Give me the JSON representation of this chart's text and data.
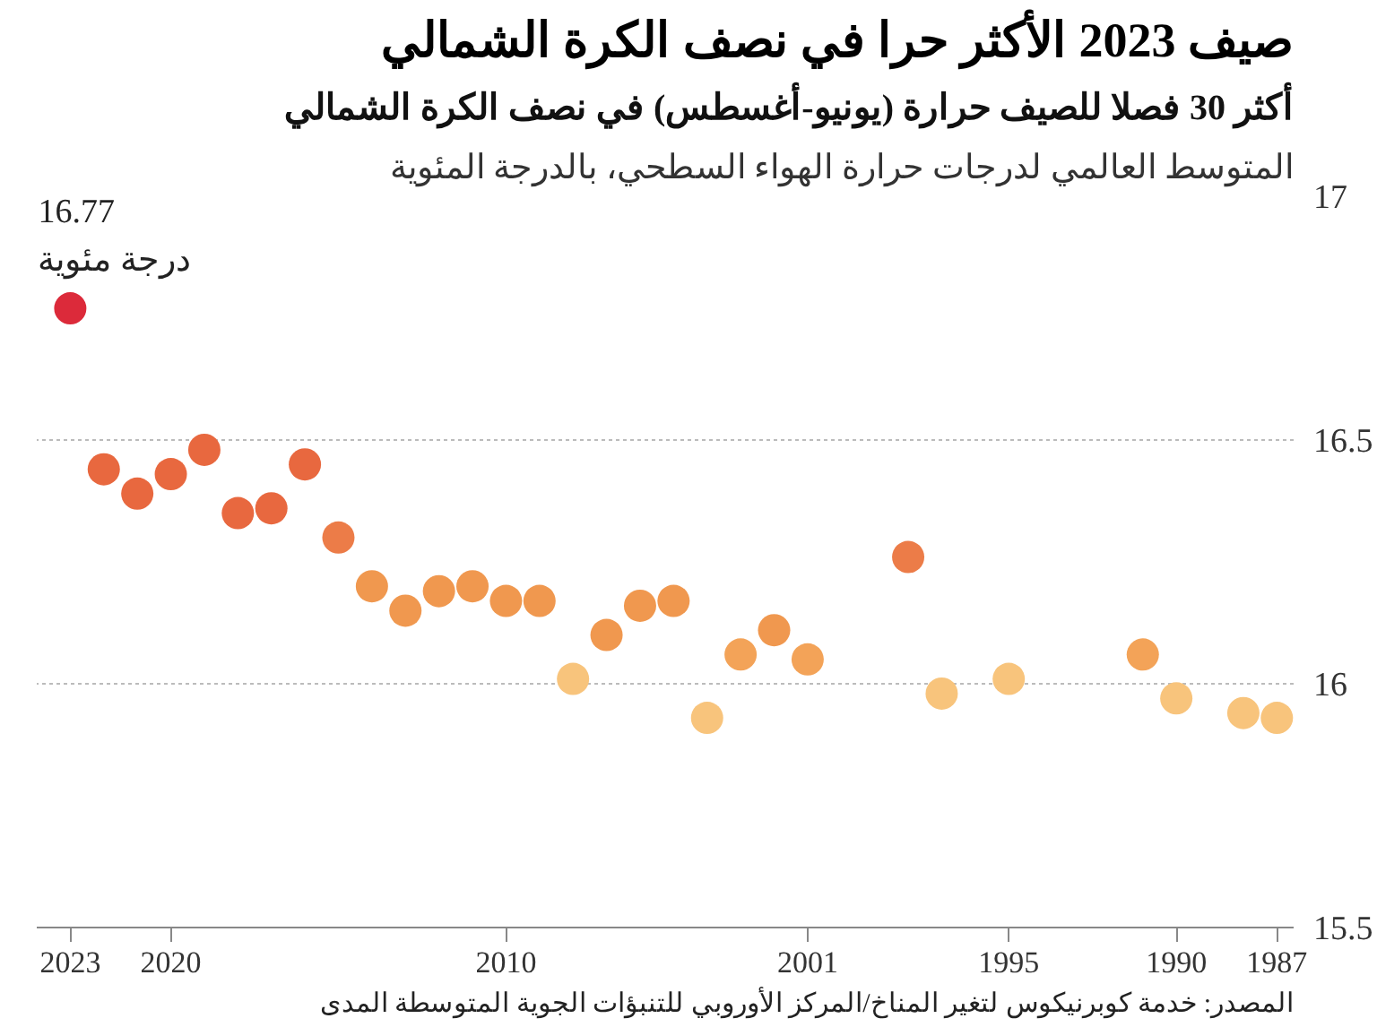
{
  "chart_data": {
    "type": "scatter",
    "title": "صيف 2023 الأكثر حرا في نصف الكرة الشمالي",
    "subtitle": "أكثر 30 فصلا للصيف حرارة (يونيو-أغسطس) في نصف الكرة الشمالي",
    "ylabel": "المتوسط العالمي لدرجات حرارة الهواء السطحي، بالدرجة المئوية",
    "x": [
      2023,
      2022,
      2021,
      2020,
      2019,
      2018,
      2017,
      2016,
      2015,
      2014,
      2013,
      2012,
      2011,
      2010,
      2009,
      2008,
      2007,
      2006,
      2005,
      2004,
      2003,
      2002,
      2001,
      1998,
      1997,
      1995,
      1991,
      1990,
      1988,
      1987
    ],
    "values": [
      16.77,
      16.44,
      16.39,
      16.43,
      16.48,
      16.35,
      16.36,
      16.45,
      16.3,
      16.2,
      16.15,
      16.19,
      16.2,
      16.17,
      16.17,
      16.01,
      16.1,
      16.16,
      16.17,
      15.93,
      16.06,
      16.11,
      16.05,
      16.26,
      15.98,
      16.01,
      16.06,
      15.97,
      15.94,
      15.93
    ],
    "colors": [
      "#dc2a3a",
      "#e8683f",
      "#e8683f",
      "#e8683f",
      "#e8683f",
      "#e8683f",
      "#e8683f",
      "#e8683f",
      "#ec7c48",
      "#f0984f",
      "#f0984f",
      "#f0984f",
      "#f0984f",
      "#f0984f",
      "#f0984f",
      "#f8c47c",
      "#f0984f",
      "#f0984f",
      "#f0984f",
      "#f8c47c",
      "#f3a358",
      "#f0984f",
      "#f3a358",
      "#ec7c48",
      "#f8c47c",
      "#f8c47c",
      "#f3a358",
      "#f8c47c",
      "#f8c47c",
      "#f8c47c"
    ],
    "xlim": [
      2024,
      1986.5
    ],
    "xticks": [
      2023,
      2020,
      2010,
      2001,
      1995,
      1990,
      1987
    ],
    "ylim": [
      15.5,
      17
    ],
    "yticks": [
      15.5,
      {
        "value": 16,
        "label": "16"
      },
      16.5,
      {
        "value": 17,
        "label": "17"
      }
    ],
    "grid": "y",
    "marker": "circle",
    "annotations": [
      {
        "text": "16.77\nدرجة مئوية",
        "x": 2023,
        "y": 16.77
      },
      "المصدر: خدمة كوبرنيكوس لتغير المناخ/المركز الأوروبي للتنبؤات الجوية المتوسطة المدى"
    ]
  }
}
